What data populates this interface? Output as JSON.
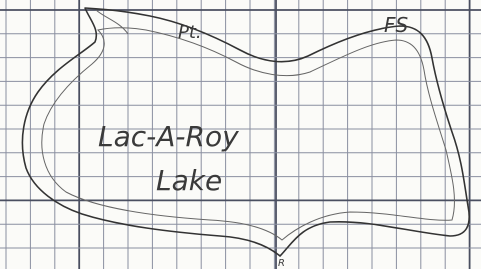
{
  "labels": {
    "point": "Pt.",
    "corner": "FS",
    "name_line1": "Lac-A-Roy",
    "name_line2": "Lake",
    "bottom_mark": "R"
  }
}
